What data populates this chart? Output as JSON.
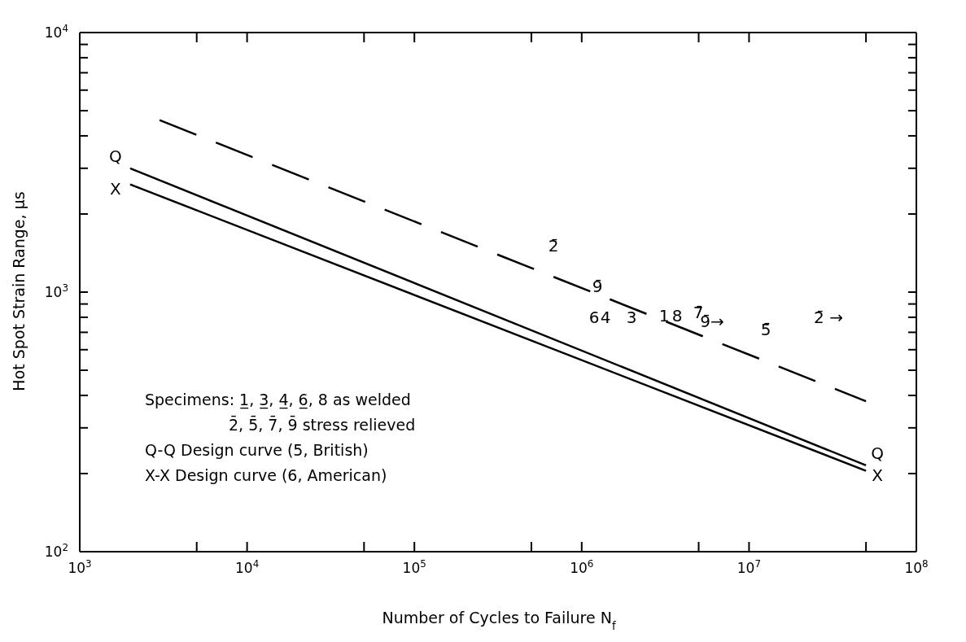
{
  "chart_data": {
    "type": "line",
    "xlabel": "Number of Cycles to Failure N$_{f}$",
    "ylabel": "Hot Spot Strain Range, μs",
    "log": "xy",
    "marker": "none",
    "xlim": [
      1000,
      100000000
    ],
    "ylim": [
      100,
      10000
    ],
    "xticks": [
      {
        "value": 1000,
        "label": "10$^{3}$"
      },
      {
        "value": 5000,
        "label": null
      },
      {
        "value": 10000,
        "label": "10$^{4}$"
      },
      {
        "value": 50000,
        "label": null
      },
      {
        "value": 100000,
        "label": "10$^{5}$"
      },
      {
        "value": 500000,
        "label": null
      },
      {
        "value": 1000000,
        "label": "10$^{6}$"
      },
      {
        "value": 5000000,
        "label": null
      },
      {
        "value": 10000000,
        "label": "10$^{7}$"
      },
      {
        "value": 50000000,
        "label": null
      },
      {
        "value": 100000000,
        "label": "10$^{8}$"
      }
    ],
    "yticks": [
      {
        "value": 100,
        "label": "10$^{2}$"
      },
      {
        "value": 200,
        "label": null
      },
      {
        "value": 300,
        "label": null
      },
      {
        "value": 400,
        "label": null
      },
      {
        "value": 500,
        "label": null
      },
      {
        "value": 600,
        "label": null
      },
      {
        "value": 700,
        "label": null
      },
      {
        "value": 800,
        "label": null
      },
      {
        "value": 900,
        "label": null
      },
      {
        "value": 1000,
        "label": "10$^{3}$"
      },
      {
        "value": 2000,
        "label": null
      },
      {
        "value": 3000,
        "label": null
      },
      {
        "value": 4000,
        "label": null
      },
      {
        "value": 5000,
        "label": null
      },
      {
        "value": 6000,
        "label": null
      },
      {
        "value": 7000,
        "label": null
      },
      {
        "value": 8000,
        "label": null
      },
      {
        "value": 9000,
        "label": null
      },
      {
        "value": 10000,
        "label": "10$^{4}$"
      }
    ],
    "series": [
      {
        "name": "Q",
        "color": "#000000",
        "line_style": "solid",
        "x": [
          2000,
          50000000
        ],
        "values": [
          3000,
          215
        ]
      },
      {
        "name": "X",
        "color": "#000000",
        "line_style": "solid",
        "x": [
          2000,
          50000000
        ],
        "values": [
          2600,
          205
        ]
      },
      {
        "color": "#000000",
        "line_style": "dashed",
        "x": [
          3000,
          50000000
        ],
        "values": [
          4600,
          380
        ]
      }
    ],
    "annotations": [
      "2̄",
      "9̄",
      "6",
      "4",
      "3",
      "1",
      "8",
      "7̄",
      "9̄→",
      "5̄",
      "2̄ →",
      "Specimens: 1̲, 3̲, 4̲, 6̲, 8 as welded",
      "2̄, 5̄, 7̄, 9̄ stress relieved",
      "Q-Q Design curve (5, British)",
      "X-X Design curve (6, American)"
    ]
  }
}
